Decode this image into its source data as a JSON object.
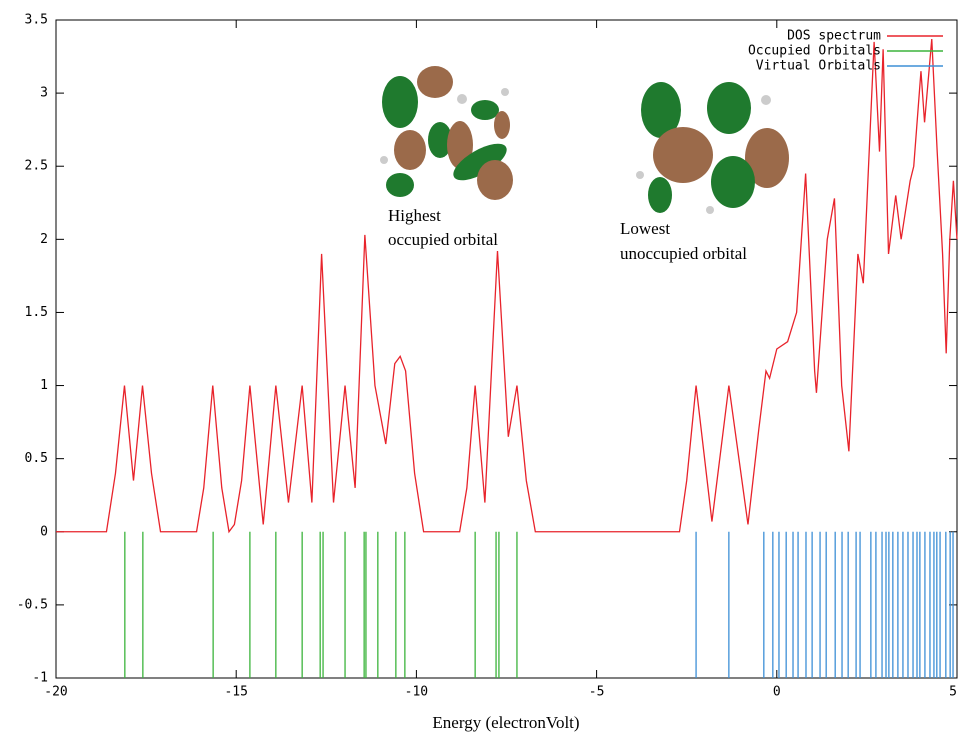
{
  "chart_data": {
    "type": "line",
    "xlabel": "Energy (electronVolt)",
    "xlim": [
      -20,
      5
    ],
    "xticks": [
      -20,
      -15,
      -10,
      -5,
      0,
      5
    ],
    "ylim": [
      -1,
      3.5
    ],
    "yticks": [
      -1,
      -0.5,
      0,
      0.5,
      1,
      1.5,
      2,
      2.5,
      3,
      3.5
    ],
    "grid": false,
    "legend": "top-right",
    "annotations": [
      [
        "Highest",
        "occupied orbital"
      ],
      [
        "Lowest",
        "unoccupied orbital"
      ]
    ],
    "series": [
      {
        "name": "DOS spectrum",
        "type": "line",
        "color": "#e8232b",
        "x": [
          -20,
          -18.6,
          -18.35,
          -18.1,
          -17.85,
          -17.6,
          -17.35,
          -17.1,
          -16.1,
          -15.9,
          -15.65,
          -15.4,
          -15.2,
          -15.05,
          -14.85,
          -14.62,
          -14.25,
          -13.9,
          -13.55,
          -13.17,
          -12.9,
          -12.63,
          -12.3,
          -11.98,
          -11.7,
          -11.43,
          -11.15,
          -10.85,
          -10.6,
          -10.45,
          -10.3,
          -10.05,
          -9.8,
          -8.8,
          -8.6,
          -8.37,
          -8.1,
          -7.75,
          -7.45,
          -7.21,
          -6.95,
          -6.7,
          -2.7,
          -2.5,
          -2.24,
          -1.8,
          -1.33,
          -0.8,
          -0.5,
          -0.3,
          -0.2,
          0,
          0.3,
          0.55,
          0.8,
          1.05,
          1.1,
          1.4,
          1.6,
          1.8,
          2.0,
          2.25,
          2.4,
          2.7,
          2.85,
          2.95,
          3.1,
          3.3,
          3.45,
          3.7,
          3.8,
          4.0,
          4.1,
          4.3,
          4.45,
          4.6,
          4.7,
          4.8,
          4.9,
          5
        ],
        "values": [
          0,
          0,
          0.4,
          1,
          0.35,
          1,
          0.4,
          0,
          0,
          0.3,
          1,
          0.3,
          0,
          0.05,
          0.35,
          1,
          0.05,
          1,
          0.2,
          1,
          0.2,
          1.9,
          0.2,
          1,
          0.3,
          2.03,
          1.0,
          0.6,
          1.15,
          1.2,
          1.1,
          0.4,
          0,
          0,
          0.3,
          1,
          0.2,
          1.92,
          0.65,
          1,
          0.35,
          0,
          0,
          0.35,
          1,
          0.07,
          1,
          0.05,
          0.7,
          1.1,
          1.05,
          1.25,
          1.3,
          1.5,
          2.45,
          1.1,
          0.95,
          2.0,
          2.28,
          1.0,
          0.55,
          1.9,
          1.7,
          3.35,
          2.6,
          3.3,
          1.9,
          2.3,
          2.0,
          2.4,
          2.5,
          3.15,
          2.8,
          3.37,
          2.6,
          1.9,
          1.22,
          2.0,
          2.4,
          2.0
        ]
      },
      {
        "name": "Occupied Orbitals",
        "type": "impulse",
        "color": "#3cb43c",
        "x": [
          -18.09,
          -17.59,
          -15.64,
          -14.62,
          -13.9,
          -13.17,
          -12.67,
          -12.59,
          -11.98,
          -11.45,
          -11.4,
          -11.07,
          -10.57,
          -10.32,
          -8.37,
          -7.79,
          -7.71,
          -7.21
        ],
        "values": [
          -1,
          -1,
          -1,
          -1,
          -1,
          -1,
          -1,
          -1,
          -1,
          -1,
          -1,
          -1,
          -1,
          -1,
          -1,
          -1,
          -1,
          -1
        ]
      },
      {
        "name": "Virtual Orbitals",
        "type": "impulse",
        "color": "#3d8fd6",
        "x": [
          -2.24,
          -1.33,
          -0.36,
          -0.11,
          0.06,
          0.26,
          0.45,
          0.59,
          0.81,
          0.98,
          1.2,
          1.37,
          1.62,
          1.81,
          1.98,
          2.2,
          2.31,
          2.61,
          2.75,
          2.92,
          3.03,
          3.11,
          3.22,
          3.36,
          3.5,
          3.64,
          3.78,
          3.89,
          3.97,
          4.11,
          4.25,
          4.36,
          4.44,
          4.53,
          4.69,
          4.81,
          4.89
        ],
        "values": [
          -1,
          -1,
          -1,
          -1,
          -1,
          -1,
          -1,
          -1,
          -1,
          -1,
          -1,
          -1,
          -1,
          -1,
          -1,
          -1,
          -1,
          -1,
          -1,
          -1,
          -1,
          -1,
          -1,
          -1,
          -1,
          -1,
          -1,
          -1,
          -1,
          -1,
          -1,
          -1,
          -1,
          -1,
          -1,
          -1,
          -1
        ]
      }
    ]
  }
}
